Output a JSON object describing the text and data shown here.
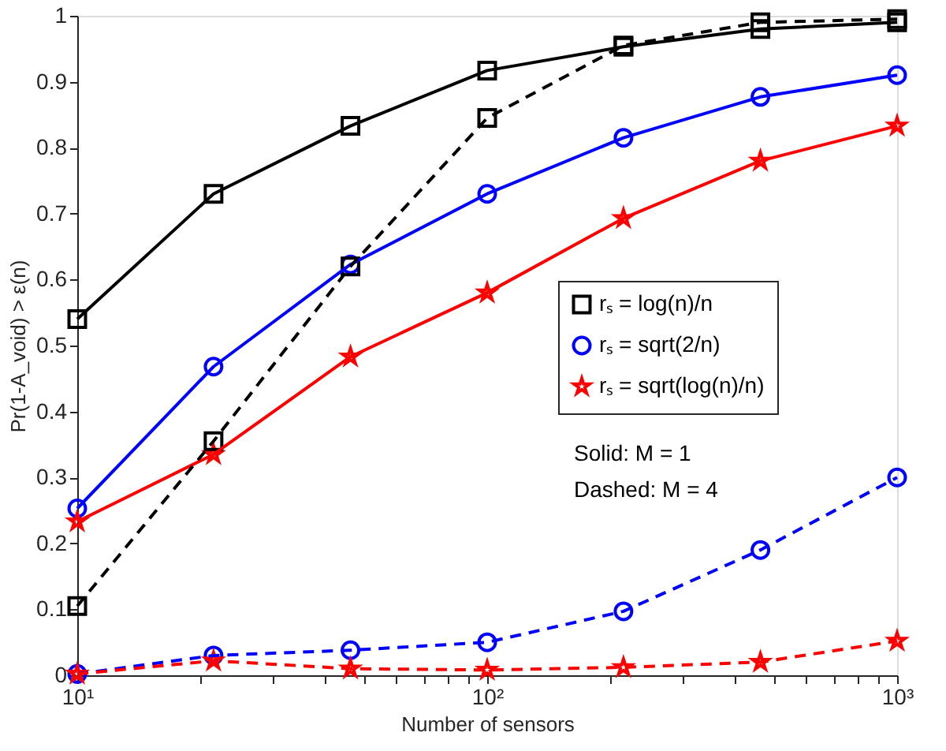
{
  "chart_data": {
    "type": "line",
    "xlabel": "Number of sensors",
    "ylabel": "Pr(1-A_void) > ε(n)",
    "x": [
      10,
      21.5,
      46.4,
      100,
      215,
      464,
      1000
    ],
    "xlim": [
      10,
      1000
    ],
    "xticks": [
      {
        "value": 10,
        "label": "10¹"
      },
      {
        "value": 20,
        "label": null
      },
      {
        "value": 30,
        "label": null
      },
      {
        "value": 40,
        "label": null
      },
      {
        "value": 50,
        "label": null
      },
      {
        "value": 60,
        "label": null
      },
      {
        "value": 70,
        "label": null
      },
      {
        "value": 80,
        "label": null
      },
      {
        "value": 90,
        "label": null
      },
      {
        "value": 100,
        "label": "10²"
      },
      {
        "value": 200,
        "label": null
      },
      {
        "value": 300,
        "label": null
      },
      {
        "value": 400,
        "label": null
      },
      {
        "value": 500,
        "label": null
      },
      {
        "value": 600,
        "label": null
      },
      {
        "value": 700,
        "label": null
      },
      {
        "value": 800,
        "label": null
      },
      {
        "value": 900,
        "label": null
      },
      {
        "value": 1000,
        "label": "10³"
      }
    ],
    "ylim": [
      0,
      1
    ],
    "yticks": [
      0,
      0.1,
      0.2,
      0.3,
      0.4,
      0.5,
      0.6,
      0.7,
      0.8,
      0.9,
      1
    ],
    "log": "x",
    "grid": false,
    "legend": "right",
    "series": [
      {
        "name": "rₛ = log(n)/n",
        "color": "#000000",
        "marker": "square",
        "line_style": "solid",
        "values": [
          0.54,
          0.73,
          0.833,
          0.917,
          0.953,
          0.98,
          0.99
        ]
      },
      {
        "name": "rₛ = sqrt(2/n)",
        "color": "#0000ff",
        "marker": "circle",
        "line_style": "solid",
        "values": [
          0.253,
          0.468,
          0.623,
          0.73,
          0.815,
          0.877,
          0.91
        ]
      },
      {
        "name": "rₛ = sqrt(log(n)/n)",
        "color": "#ff0000",
        "marker": "star",
        "line_style": "solid",
        "values": [
          0.233,
          0.335,
          0.483,
          0.58,
          0.693,
          0.78,
          0.833
        ]
      },
      {
        "color": "#000000",
        "marker": "square",
        "line_style": "dashed",
        "values": [
          0.105,
          0.355,
          0.62,
          0.845,
          0.955,
          0.99,
          0.995
        ]
      },
      {
        "color": "#0000ff",
        "marker": "circle",
        "line_style": "dashed",
        "values": [
          0.002,
          0.03,
          0.038,
          0.05,
          0.097,
          0.19,
          0.3
        ]
      },
      {
        "color": "#ff0000",
        "marker": "star",
        "line_style": "dashed",
        "values": [
          0.002,
          0.022,
          0.01,
          0.008,
          0.012,
          0.02,
          0.052
        ]
      }
    ],
    "annotations": [
      "Solid: M = 1",
      "Dashed: M = 4"
    ]
  }
}
